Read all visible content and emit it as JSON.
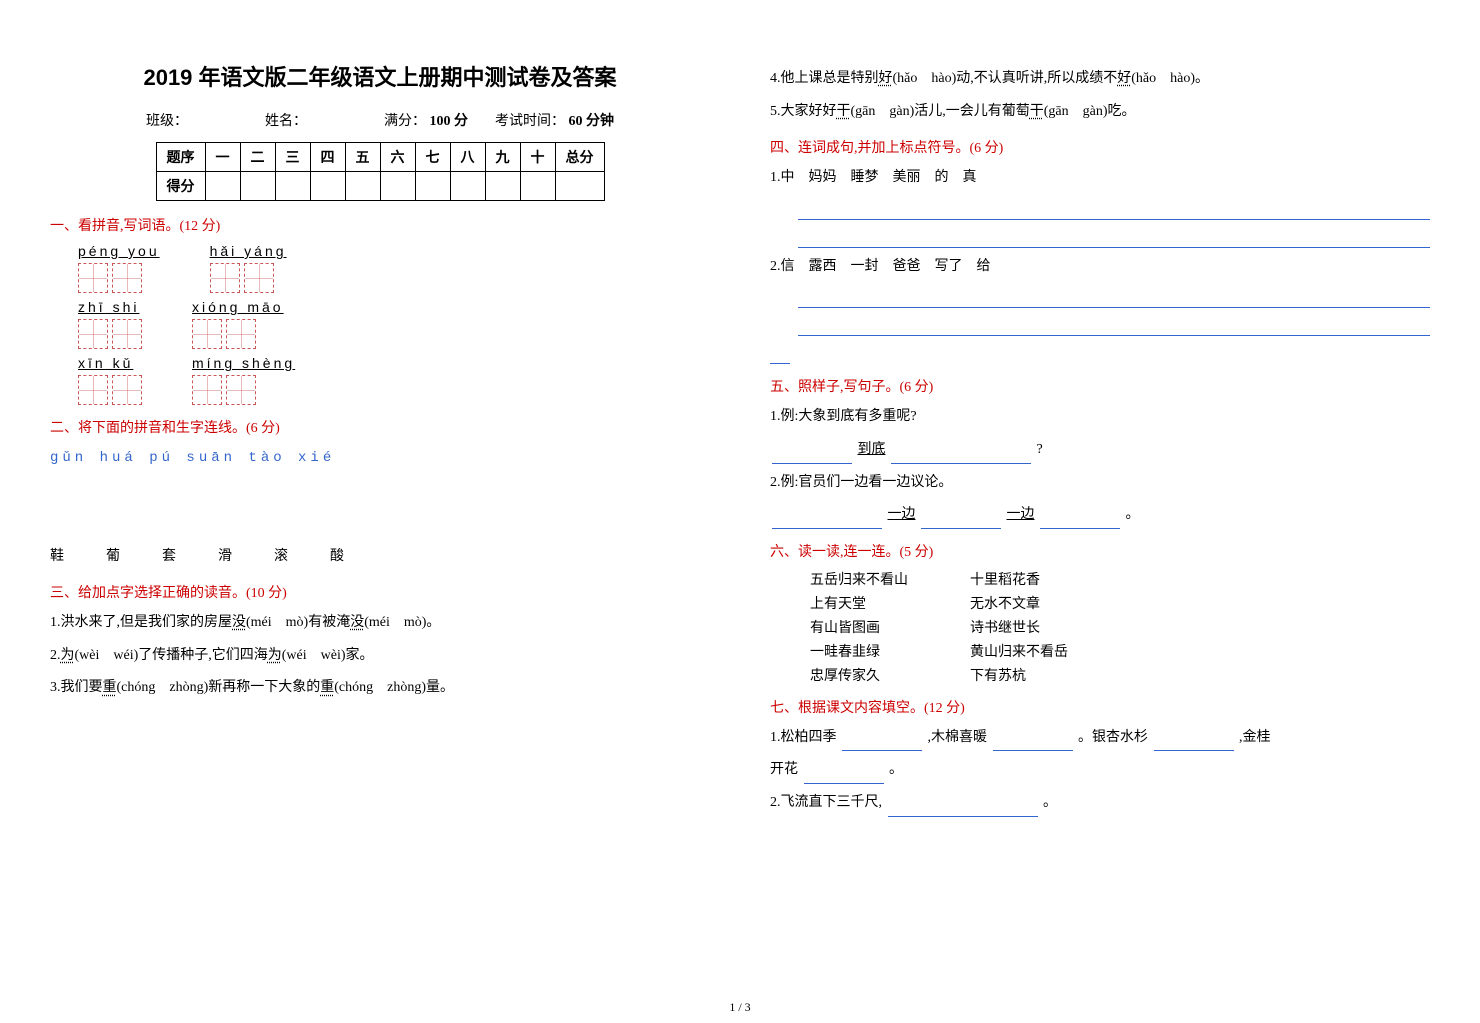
{
  "title": "2019 年语文版二年级语文上册期中测试卷及答案",
  "meta": {
    "class_label": "班级：",
    "name_label": "姓名：",
    "full_label": "满分：",
    "full_value": "100 分",
    "time_label": "考试时间：",
    "time_value": "60 分钟"
  },
  "score_table": {
    "row1_head": "题序",
    "cols": [
      "一",
      "二",
      "三",
      "四",
      "五",
      "六",
      "七",
      "八",
      "九",
      "十",
      "总分"
    ],
    "row2_head": "得分"
  },
  "s1": {
    "head": "一、看拼音,写词语。(12 分)",
    "rows": [
      [
        {
          "py": "péng you",
          "n": 2
        },
        {
          "py": "hǎi yáng",
          "n": 2
        }
      ],
      [
        {
          "py": "zhī shi",
          "n": 2
        },
        {
          "py": "xióng māo",
          "n": 2
        }
      ],
      [
        {
          "py": "xīn kǔ",
          "n": 2
        },
        {
          "py": "míng shèng",
          "n": 2
        }
      ]
    ]
  },
  "s2": {
    "head": "二、将下面的拼音和生字连线。(6 分)",
    "pinyin": "gǔn huá pú suān tào xié",
    "hanzi": "鞋　葡　套　滑　滚　酸"
  },
  "s3": {
    "head": "三、给加点字选择正确的读音。(10 分)",
    "items": [
      "1.洪水来了,但是我们家的房屋<u>没</u>(méi　mò)有被淹<u>没</u>(méi　mò)。",
      "2.<u>为</u>(wèi　wéi)了传播种子,它们四海<u>为</u>(wéi　wèi)家。",
      "3.我们要<u>重</u>(chóng　zhòng)新再称一下大象的<u>重</u>(chóng　zhòng)量。",
      "4.他上课总是特别<u>好</u>(hǎo　hào)动,不认真听讲,所以成绩不<u>好</u>(hǎo　hào)。",
      "5.大家好好<u>干</u>(gān　gàn)活儿,一会儿有葡萄<u>干</u>(gān　gàn)吃。"
    ]
  },
  "s4": {
    "head": "四、连词成句,并加上标点符号。(6 分)",
    "items": [
      "1.中　妈妈　睡梦　美丽　的　真",
      "2.信　露西　一封　爸爸　写了　给"
    ]
  },
  "s5": {
    "head": "五、照样子,写句子。(6 分)",
    "eg1": "1.例:大象到底有多重呢?",
    "fill1_mid": "到底",
    "eg2": "2.例:官员们一边看一边议论。",
    "fill2_a": "一边",
    "fill2_b": "一边",
    "period": "。",
    "qmark": "?"
  },
  "s6": {
    "head": "六、读一读,连一连。(5 分)",
    "pairs": [
      [
        "五岳归来不看山",
        "十里稻花香"
      ],
      [
        "上有天堂",
        "无水不文章"
      ],
      [
        "有山皆图画",
        "诗书继世长"
      ],
      [
        "一畦春韭绿",
        "黄山归来不看岳"
      ],
      [
        "忠厚传家久",
        "下有苏杭"
      ]
    ]
  },
  "s7": {
    "head": "七、根据课文内容填空。(12 分)",
    "line1_a": "1.松柏四季",
    "line1_b": ",木棉喜暖",
    "line1_c": "。银杏水杉",
    "line1_d": ",金桂",
    "line1_e": "开花",
    "line1_f": "。",
    "line2_a": "2.飞流直下三千尺,",
    "line2_b": "。"
  },
  "page_num": "1 / 3"
}
